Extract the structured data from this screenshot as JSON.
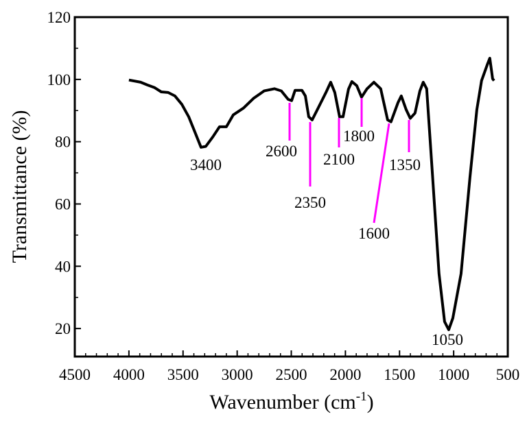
{
  "chart_data": {
    "type": "line",
    "x_label": "Wavenumber (cm",
    "x_label_superscript": "-1",
    "x_label_end": ")",
    "y_label": "Transmittance (%)",
    "xlim": [
      4500,
      500
    ],
    "xticks": [
      4500,
      4000,
      3500,
      3000,
      2500,
      2000,
      1500,
      1000,
      500
    ],
    "ylim": [
      11,
      120
    ],
    "yticks": [
      20,
      40,
      60,
      80,
      100,
      120
    ],
    "line_color": "#000000",
    "peak_line_color": "#ff00ff",
    "x": [
      4000,
      3892,
      3828,
      3765,
      3701,
      3638,
      3575,
      3511,
      3448,
      3385,
      3334,
      3290,
      3226,
      3163,
      3100,
      3036,
      2941,
      2846,
      2751,
      2656,
      2592,
      2529,
      2497,
      2465,
      2402,
      2370,
      2339,
      2307,
      2243,
      2180,
      2136,
      2098,
      2054,
      2022,
      1971,
      1940,
      1895,
      1851,
      1800,
      1737,
      1674,
      1610,
      1579,
      1515,
      1484,
      1439,
      1401,
      1357,
      1312,
      1281,
      1249,
      1198,
      1135,
      1084,
      1046,
      1008,
      932,
      850,
      786,
      742,
      691,
      666,
      640,
      627
    ],
    "values": [
      99.8,
      99.1,
      98.2,
      97.4,
      96,
      95.8,
      94.7,
      92,
      88,
      82.6,
      78.2,
      78.5,
      81.5,
      84.8,
      84.8,
      88.6,
      90.8,
      94,
      96.3,
      97,
      96.3,
      93.6,
      93.2,
      96.5,
      96.5,
      94.7,
      88,
      87,
      91.4,
      95.8,
      99.1,
      95.8,
      88,
      88,
      96.9,
      99.3,
      98,
      94.3,
      97,
      99.1,
      97,
      87,
      86.4,
      92.5,
      94.7,
      90.3,
      87.5,
      89.2,
      96.3,
      99.1,
      97,
      70.5,
      37.6,
      22.2,
      19.6,
      23.3,
      37.6,
      68.4,
      90.3,
      99.6,
      104.6,
      106.8,
      100.2,
      99.6
    ],
    "peaks": [
      3400,
      2600,
      2350,
      2100,
      1800,
      1600,
      1350,
      1050
    ]
  }
}
